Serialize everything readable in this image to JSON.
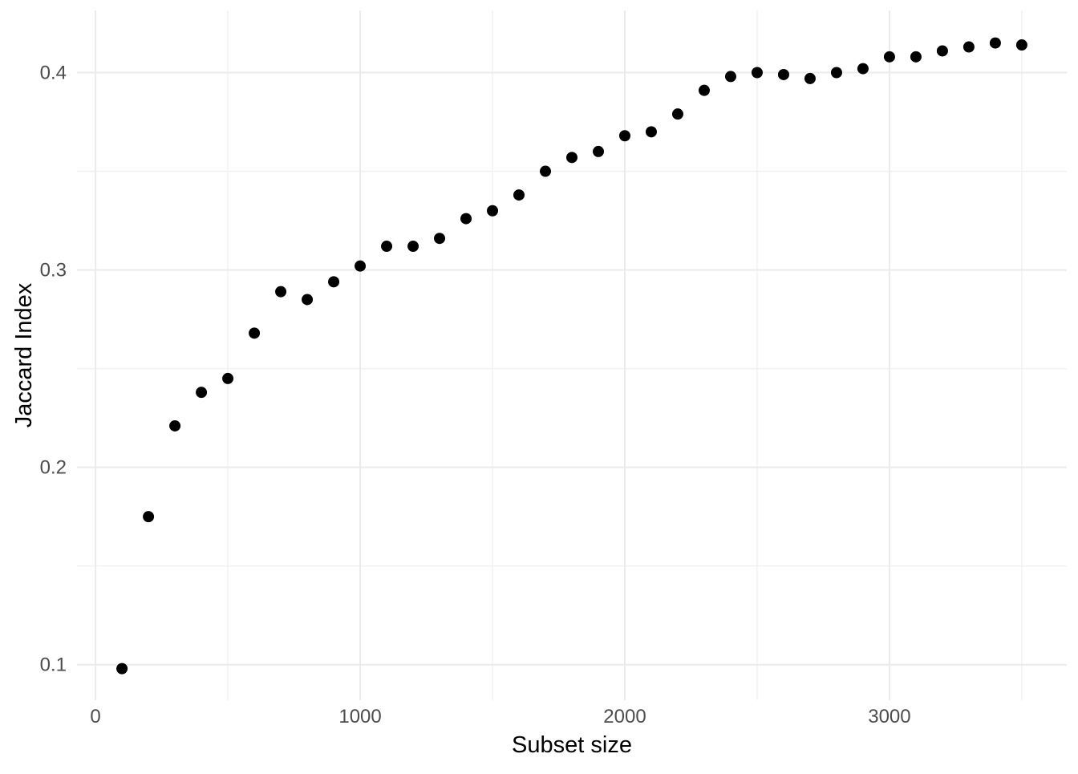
{
  "chart_data": {
    "type": "scatter",
    "xlabel": "Subset size",
    "ylabel": "Jaccard Index",
    "x": [
      100,
      200,
      300,
      400,
      500,
      600,
      700,
      800,
      900,
      1000,
      1100,
      1200,
      1300,
      1400,
      1500,
      1600,
      1700,
      1800,
      1900,
      2000,
      2100,
      2200,
      2300,
      2400,
      2500,
      2600,
      2700,
      2800,
      2900,
      3000,
      3100,
      3200,
      3300,
      3400,
      3500
    ],
    "y": [
      0.098,
      0.175,
      0.221,
      0.238,
      0.245,
      0.268,
      0.289,
      0.285,
      0.294,
      0.302,
      0.312,
      0.312,
      0.316,
      0.326,
      0.33,
      0.338,
      0.35,
      0.357,
      0.36,
      0.368,
      0.37,
      0.379,
      0.391,
      0.398,
      0.4,
      0.399,
      0.397,
      0.4,
      0.402,
      0.408,
      0.408,
      0.411,
      0.413,
      0.415,
      0.414
    ],
    "xlim": [
      -70,
      3670
    ],
    "ylim": [
      0.082,
      0.4315
    ],
    "x_ticks": {
      "values": [
        0,
        1000,
        2000,
        3000
      ],
      "labels": [
        "0",
        "1000",
        "2000",
        "3000"
      ]
    },
    "y_ticks": {
      "values": [
        0.1,
        0.2,
        0.3,
        0.4
      ],
      "labels": [
        "0.1",
        "0.2",
        "0.3",
        "0.4"
      ]
    },
    "x_minor_ticks": [
      500,
      1500,
      2500,
      3500
    ],
    "y_minor_ticks": [
      0.15,
      0.25,
      0.35
    ],
    "grid": "on",
    "legend": "none",
    "point_radius_px": 7,
    "colors": {
      "background": "#FFFFFF",
      "point": "#000000",
      "grid_major": "#EBEBEB",
      "grid_minor": "#F0F0F0",
      "tick_label": "#4D4D4D",
      "axis_title": "#000000"
    }
  }
}
